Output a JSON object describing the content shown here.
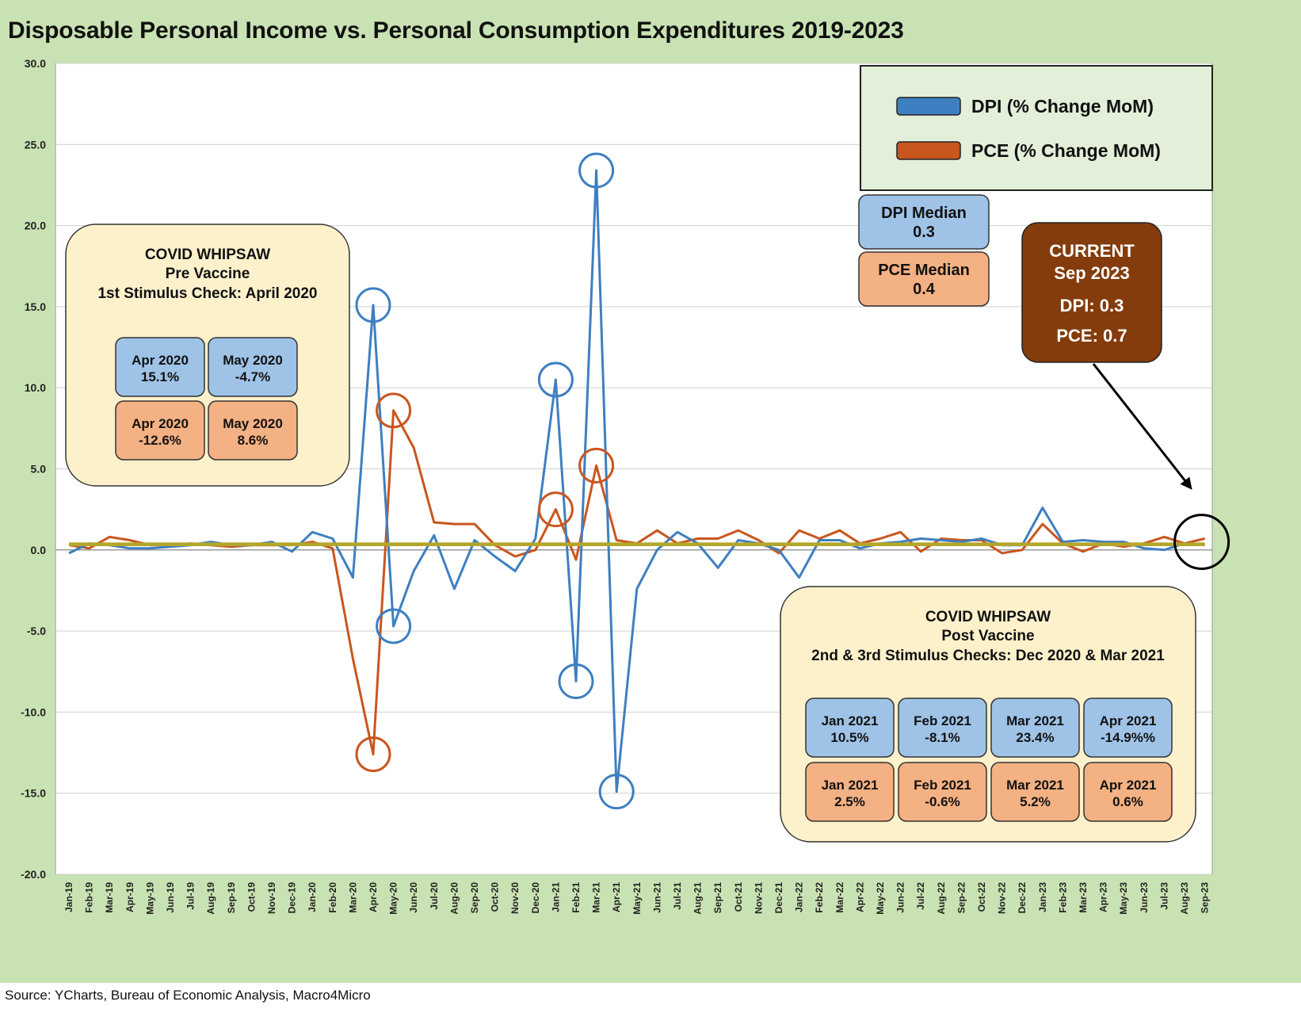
{
  "title": "Disposable Personal Income vs. Personal Consumption Expenditures 2019-2023",
  "source": "Source: YCharts, Bureau of Economic Analysis, Macro4Micro",
  "colors": {
    "frame": "#c9e2b3",
    "dpi": "#3e7fc1",
    "pce": "#c9561e",
    "median": "#b5a62a"
  },
  "chart_data": {
    "type": "line",
    "title": "Disposable Personal Income vs. Personal Consumption Expenditures 2019-2023",
    "xlabel": "",
    "ylabel": "",
    "ylim": [
      -20,
      30
    ],
    "yticks": [
      "30.0",
      "25.0",
      "20.0",
      "15.0",
      "10.0",
      "5.0",
      "0.0",
      "-5.0",
      "-10.0",
      "-15.0",
      "-20.0"
    ],
    "grid": "horizontal",
    "legend_position": "top-right",
    "categories": [
      "Jan-19",
      "Feb-19",
      "Mar-19",
      "Apr-19",
      "May-19",
      "Jun-19",
      "Jul-19",
      "Aug-19",
      "Sep-19",
      "Oct-19",
      "Nov-19",
      "Dec-19",
      "Jan-20",
      "Feb-20",
      "Mar-20",
      "Apr-20",
      "May-20",
      "Jun-20",
      "Jul-20",
      "Aug-20",
      "Sep-20",
      "Oct-20",
      "Nov-20",
      "Dec-20",
      "Jan-21",
      "Feb-21",
      "Mar-21",
      "Apr-21",
      "May-21",
      "Jun-21",
      "Jul-21",
      "Aug-21",
      "Sep-21",
      "Oct-21",
      "Nov-21",
      "Dec-21",
      "Jan-22",
      "Feb-22",
      "Mar-22",
      "Apr-22",
      "May-22",
      "Jun-22",
      "Jul-22",
      "Aug-22",
      "Sep-22",
      "Oct-22",
      "Nov-22",
      "Dec-22",
      "Jan-23",
      "Feb-23",
      "Mar-23",
      "Apr-23",
      "May-23",
      "Jun-23",
      "Jul-23",
      "Aug-23",
      "Sep-23"
    ],
    "series": [
      {
        "name": "DPI (% Change MoM)",
        "values": [
          -0.2,
          0.4,
          0.3,
          0.1,
          0.1,
          0.2,
          0.3,
          0.5,
          0.3,
          0.3,
          0.5,
          -0.1,
          1.1,
          0.7,
          -1.7,
          15.1,
          -4.7,
          -1.3,
          0.9,
          -2.4,
          0.6,
          -0.4,
          -1.3,
          0.7,
          10.5,
          -8.1,
          23.4,
          -14.9,
          -2.4,
          0.0,
          1.1,
          0.4,
          -1.1,
          0.6,
          0.4,
          0.0,
          -1.7,
          0.6,
          0.6,
          0.1,
          0.4,
          0.5,
          0.7,
          0.6,
          0.5,
          0.7,
          0.3,
          0.3,
          2.6,
          0.5,
          0.6,
          0.5,
          0.5,
          0.1,
          0.0,
          0.4,
          0.3
        ]
      },
      {
        "name": "PCE (% Change MoM)",
        "values": [
          0.3,
          0.1,
          0.8,
          0.6,
          0.3,
          0.3,
          0.4,
          0.3,
          0.2,
          0.3,
          0.3,
          0.3,
          0.5,
          0.1,
          -6.7,
          -12.6,
          8.6,
          6.3,
          1.7,
          1.6,
          1.6,
          0.3,
          -0.4,
          0.0,
          2.5,
          -0.6,
          5.2,
          0.6,
          0.4,
          1.2,
          0.4,
          0.7,
          0.7,
          1.2,
          0.6,
          -0.2,
          1.2,
          0.7,
          1.2,
          0.4,
          0.7,
          1.1,
          -0.1,
          0.7,
          0.6,
          0.6,
          -0.2,
          0.0,
          1.6,
          0.4,
          -0.1,
          0.4,
          0.2,
          0.4,
          0.8,
          0.4,
          0.7
        ]
      },
      {
        "name": "DPI Median",
        "values": [
          0.3,
          0.3,
          0.3,
          0.3,
          0.3,
          0.3,
          0.3,
          0.3,
          0.3,
          0.3,
          0.3,
          0.3,
          0.3,
          0.3,
          0.3,
          0.3,
          0.3,
          0.3,
          0.3,
          0.3,
          0.3,
          0.3,
          0.3,
          0.3,
          0.3,
          0.3,
          0.3,
          0.3,
          0.3,
          0.3,
          0.3,
          0.3,
          0.3,
          0.3,
          0.3,
          0.3,
          0.3,
          0.3,
          0.3,
          0.3,
          0.3,
          0.3,
          0.3,
          0.3,
          0.3,
          0.3,
          0.3,
          0.3,
          0.3,
          0.3,
          0.3,
          0.3,
          0.3,
          0.3,
          0.3,
          0.3,
          0.3
        ]
      },
      {
        "name": "PCE Median",
        "values": [
          0.4,
          0.4,
          0.4,
          0.4,
          0.4,
          0.4,
          0.4,
          0.4,
          0.4,
          0.4,
          0.4,
          0.4,
          0.4,
          0.4,
          0.4,
          0.4,
          0.4,
          0.4,
          0.4,
          0.4,
          0.4,
          0.4,
          0.4,
          0.4,
          0.4,
          0.4,
          0.4,
          0.4,
          0.4,
          0.4,
          0.4,
          0.4,
          0.4,
          0.4,
          0.4,
          0.4,
          0.4,
          0.4,
          0.4,
          0.4,
          0.4,
          0.4,
          0.4,
          0.4,
          0.4,
          0.4,
          0.4,
          0.4,
          0.4,
          0.4,
          0.4,
          0.4,
          0.4,
          0.4,
          0.4,
          0.4,
          0.4
        ]
      }
    ],
    "legend": [
      {
        "label": "DPI (% Change MoM)",
        "color": "#3e7fc1"
      },
      {
        "label": "PCE (% Change MoM)",
        "color": "#c9561e"
      }
    ],
    "highlight_circles": [
      {
        "series": 0,
        "index": 15
      },
      {
        "series": 0,
        "index": 16
      },
      {
        "series": 0,
        "index": 24
      },
      {
        "series": 0,
        "index": 25
      },
      {
        "series": 0,
        "index": 26
      },
      {
        "series": 0,
        "index": 27
      },
      {
        "series": 1,
        "index": 15
      },
      {
        "series": 1,
        "index": 16
      },
      {
        "series": 1,
        "index": 24
      },
      {
        "series": 1,
        "index": 26
      }
    ],
    "current_circle": {
      "index": 56,
      "value": 0.5
    },
    "annotations": {
      "medians": [
        {
          "line1": "DPI Median",
          "line2": "0.3",
          "kind": "dpi"
        },
        {
          "line1": "PCE Median",
          "line2": "0.4",
          "kind": "pce"
        }
      ],
      "current": {
        "line1": "CURRENT",
        "line2": "Sep 2023",
        "line3": "DPI: 0.3",
        "line4": "PCE: 0.7"
      },
      "pre_vaccine": {
        "title1": "COVID WHIPSAW",
        "title2": "Pre Vaccine",
        "title3": "1st Stimulus Check: April 2020",
        "cells": [
          {
            "month": "Apr 2020",
            "value": "15.1%",
            "kind": "dpi"
          },
          {
            "month": "May 2020",
            "value": "-4.7%",
            "kind": "dpi"
          },
          {
            "month": "Apr 2020",
            "value": "-12.6%",
            "kind": "pce"
          },
          {
            "month": "May 2020",
            "value": "8.6%",
            "kind": "pce"
          }
        ]
      },
      "post_vaccine": {
        "title1": "COVID WHIPSAW",
        "title2": "Post Vaccine",
        "title3": "2nd & 3rd Stimulus Checks: Dec 2020 & Mar 2021",
        "cells": [
          {
            "month": "Jan 2021",
            "value": "10.5%",
            "kind": "dpi"
          },
          {
            "month": "Feb 2021",
            "value": "-8.1%",
            "kind": "dpi"
          },
          {
            "month": "Mar 2021",
            "value": "23.4%",
            "kind": "dpi"
          },
          {
            "month": "Apr 2021",
            "value": "-14.9%%",
            "kind": "dpi"
          },
          {
            "month": "Jan 2021",
            "value": "2.5%",
            "kind": "pce"
          },
          {
            "month": "Feb 2021",
            "value": "-0.6%",
            "kind": "pce"
          },
          {
            "month": "Mar 2021",
            "value": "5.2%",
            "kind": "pce"
          },
          {
            "month": "Apr 2021",
            "value": "0.6%",
            "kind": "pce"
          }
        ]
      }
    }
  }
}
